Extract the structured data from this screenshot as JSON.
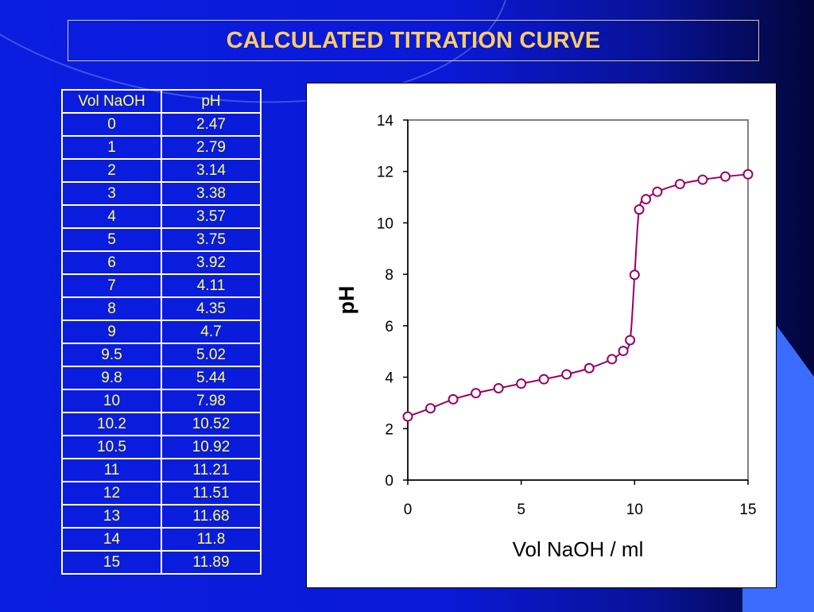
{
  "title": "CALCULATED TITRATION CURVE",
  "table": {
    "headers": [
      "Vol NaOH",
      "pH"
    ],
    "rows": [
      [
        "0",
        "2.47"
      ],
      [
        "1",
        "2.79"
      ],
      [
        "2",
        "3.14"
      ],
      [
        "3",
        "3.38"
      ],
      [
        "4",
        "3.57"
      ],
      [
        "5",
        "3.75"
      ],
      [
        "6",
        "3.92"
      ],
      [
        "7",
        "4.11"
      ],
      [
        "8",
        "4.35"
      ],
      [
        "9",
        "4.7"
      ],
      [
        "9.5",
        "5.02"
      ],
      [
        "9.8",
        "5.44"
      ],
      [
        "10",
        "7.98"
      ],
      [
        "10.2",
        "10.52"
      ],
      [
        "10.5",
        "10.92"
      ],
      [
        "11",
        "11.21"
      ],
      [
        "12",
        "11.51"
      ],
      [
        "13",
        "11.68"
      ],
      [
        "14",
        "11.8"
      ],
      [
        "15",
        "11.89"
      ]
    ]
  },
  "colors": {
    "series": "#990066",
    "title": "#ffcc66",
    "table_text": "#ffff66"
  },
  "chart_data": {
    "type": "scatter",
    "xlabel": "Vol NaOH / ml",
    "ylabel": "pH",
    "xlim": [
      0,
      15
    ],
    "ylim": [
      0,
      14
    ],
    "xticks": [
      0,
      5,
      10,
      15
    ],
    "yticks": [
      0,
      2,
      4,
      6,
      8,
      10,
      12,
      14
    ],
    "series": [
      {
        "x": [
          0,
          1,
          2,
          3,
          4,
          5,
          6,
          7,
          8,
          9,
          9.5,
          9.8,
          10,
          10.2,
          10.5,
          11,
          12,
          13,
          14,
          15
        ],
        "y": [
          2.47,
          2.79,
          3.14,
          3.38,
          3.57,
          3.75,
          3.92,
          4.11,
          4.35,
          4.7,
          5.02,
          5.44,
          7.98,
          10.52,
          10.92,
          11.21,
          11.51,
          11.68,
          11.8,
          11.89
        ],
        "style": "markers-with-smooth-line"
      }
    ]
  }
}
